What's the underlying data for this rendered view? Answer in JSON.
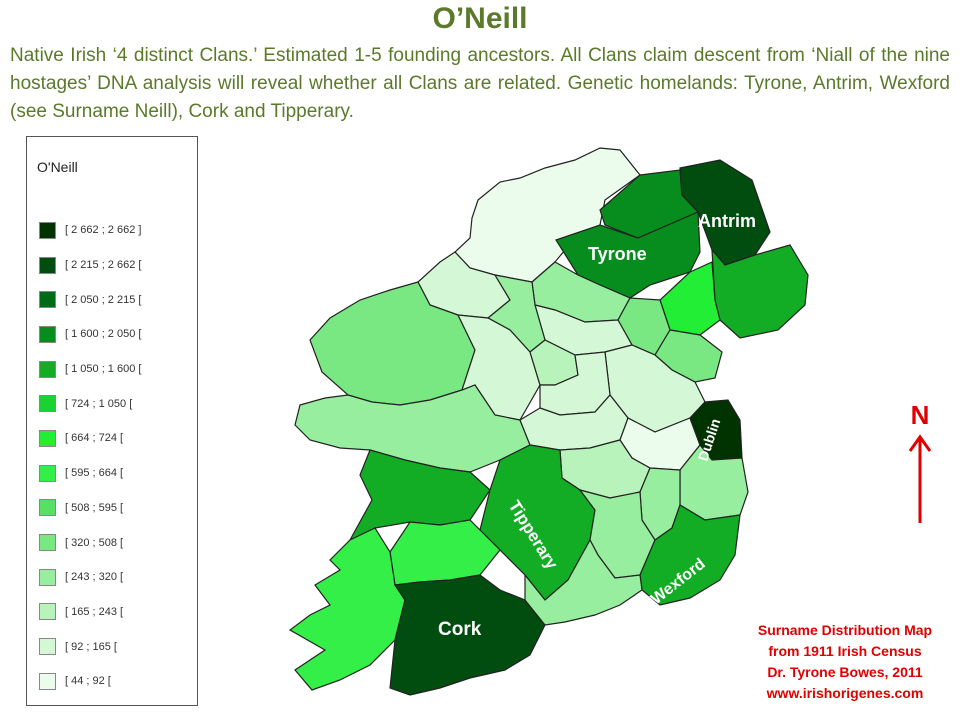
{
  "header": {
    "title": "O’Neill",
    "description": "Native Irish ‘4 distinct Clans.’ Estimated 1-5 founding ancestors. All Clans claim descent from ‘Niall of the nine hostages’ DNA analysis will reveal whether all Clans are related. Genetic homelands: Tyrone, Antrim, Wexford  (see Surname Neill), Cork  and Tipperary."
  },
  "legend": {
    "title": "O'Neill",
    "items": [
      {
        "label": "[ 2 662 ; 2 662 ]",
        "color": "#003300"
      },
      {
        "label": "[ 2 215 ; 2 662 [",
        "color": "#004d0f"
      },
      {
        "label": "[ 2 050 ; 2 215 [",
        "color": "#006b16"
      },
      {
        "label": "[ 1 600 ; 2 050 [",
        "color": "#078c1e"
      },
      {
        "label": "[ 1 050 ; 1 600 [",
        "color": "#13ad25"
      },
      {
        "label": "[ 724 ; 1 050 [",
        "color": "#1bd32e"
      },
      {
        "label": "[ 664 ; 724 [",
        "color": "#22ee36"
      },
      {
        "label": "[ 595 ; 664 [",
        "color": "#34ef47"
      },
      {
        "label": "[ 508 ; 595 [",
        "color": "#55e163"
      },
      {
        "label": "[ 320 ; 508 [",
        "color": "#79e883"
      },
      {
        "label": "[ 243 ; 320 [",
        "color": "#98ee9f"
      },
      {
        "label": "[ 165 ; 243 [",
        "color": "#b8f3bc"
      },
      {
        "label": "[ 92 ; 165 [",
        "color": "#d4f8d6"
      },
      {
        "label": "[ 44 ; 92 [",
        "color": "#ecfcec"
      }
    ]
  },
  "map": {
    "labels": {
      "antrim": "Antrim",
      "tyrone": "Tyrone",
      "dublin": "Dublin",
      "tipperary": "Tipperary",
      "wexford": "Wexford",
      "cork": "Cork"
    },
    "colors": {
      "lightest": "#ecfcec",
      "light": "#d4f8d6",
      "pale": "#b8f3bc",
      "soft": "#98ee9f",
      "mid": "#79e883",
      "bright": "#22ee36",
      "vivid": "#34ef47",
      "green": "#13ad25",
      "dark": "#078c1e",
      "darkest": "#004d0f",
      "black_green": "#003300"
    }
  },
  "north_arrow": {
    "letter": "N",
    "color": "#e00000"
  },
  "credits": {
    "line1": "Surname Distribution Map",
    "line2": "from 1911 Irish Census",
    "line3": "Dr. Tyrone Bowes, 2011",
    "line4": "www.irishorigenes.com"
  }
}
